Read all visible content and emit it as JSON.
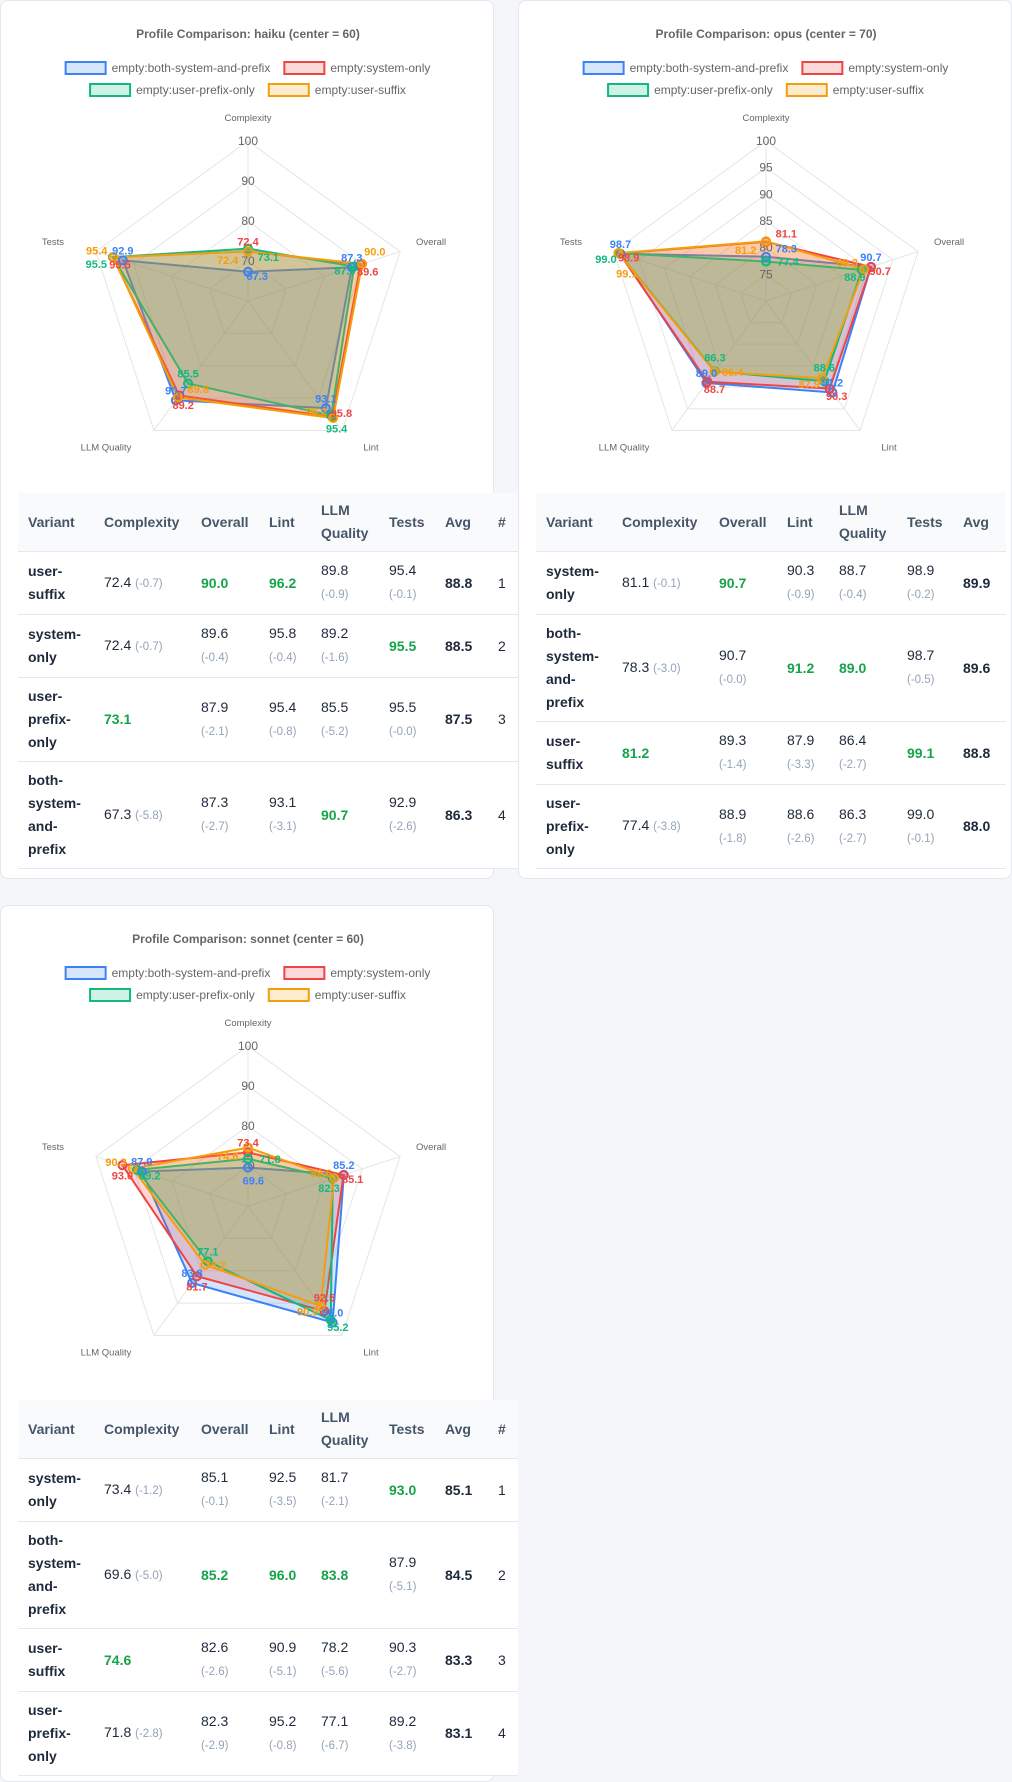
{
  "colors": {
    "blue": "#3b82f6",
    "red": "#ef4444",
    "green": "#10b981",
    "orange": "#f59e0b",
    "best": "#16a34a"
  },
  "table_headers": [
    "Variant",
    "Complexity",
    "Overall",
    "Lint",
    "LLM Quality",
    "Tests",
    "Avg",
    "#"
  ],
  "chart_data": [
    {
      "type": "radar",
      "title": "Profile Comparison: haiku  (center = 60)",
      "axes": [
        "Complexity",
        "Overall",
        "Lint",
        "LLM Quality",
        "Tests"
      ],
      "range": [
        60,
        100
      ],
      "ticks": [
        "70",
        "80",
        "90",
        "100"
      ],
      "legend_position": "top",
      "series": [
        {
          "name": "empty:both-system-and-prefix",
          "color": "#3b82f6",
          "values": [
            67.3,
            87.3,
            93.1,
            90.7,
            92.9
          ]
        },
        {
          "name": "empty:system-only",
          "color": "#ef4444",
          "values": [
            72.4,
            89.6,
            95.8,
            89.2,
            95.5
          ]
        },
        {
          "name": "empty:user-prefix-only",
          "color": "#10b981",
          "values": [
            73.1,
            87.9,
            95.4,
            85.5,
            95.5
          ]
        },
        {
          "name": "empty:user-suffix",
          "color": "#f59e0b",
          "values": [
            72.4,
            90.0,
            96.2,
            89.8,
            95.4
          ]
        }
      ],
      "table": [
        {
          "variant": "user-suffix",
          "cells": [
            {
              "v": "72.4",
              "d": "(-0.7)"
            },
            {
              "v": "90.0",
              "best": true
            },
            {
              "v": "96.2",
              "best": true
            },
            {
              "v": "89.8",
              "d": "(-0.9)"
            },
            {
              "v": "95.4",
              "d": "(-0.1)"
            }
          ],
          "avg": "88.8",
          "rank": "1"
        },
        {
          "variant": "system-only",
          "cells": [
            {
              "v": "72.4",
              "d": "(-0.7)"
            },
            {
              "v": "89.6",
              "d": "(-0.4)"
            },
            {
              "v": "95.8",
              "d": "(-0.4)"
            },
            {
              "v": "89.2",
              "d": "(-1.6)"
            },
            {
              "v": "95.5",
              "best": true
            }
          ],
          "avg": "88.5",
          "rank": "2"
        },
        {
          "variant": "user-prefix-only",
          "cells": [
            {
              "v": "73.1",
              "best": true
            },
            {
              "v": "87.9",
              "d": "(-2.1)"
            },
            {
              "v": "95.4",
              "d": "(-0.8)"
            },
            {
              "v": "85.5",
              "d": "(-5.2)"
            },
            {
              "v": "95.5",
              "d": "(-0.0)"
            }
          ],
          "avg": "87.5",
          "rank": "3"
        },
        {
          "variant": "both-system-and-prefix",
          "cells": [
            {
              "v": "67.3",
              "d": "(-5.8)"
            },
            {
              "v": "87.3",
              "d": "(-2.7)"
            },
            {
              "v": "93.1",
              "d": "(-3.1)"
            },
            {
              "v": "90.7",
              "best": true
            },
            {
              "v": "92.9",
              "d": "(-2.6)"
            }
          ],
          "avg": "86.3",
          "rank": "4"
        }
      ]
    },
    {
      "type": "radar",
      "title": "Profile Comparison: opus  (center = 70)",
      "axes": [
        "Complexity",
        "Overall",
        "Lint",
        "LLM Quality",
        "Tests"
      ],
      "range": [
        70,
        100
      ],
      "ticks": [
        "75",
        "80",
        "85",
        "90",
        "95",
        "100"
      ],
      "legend_position": "top",
      "series": [
        {
          "name": "empty:both-system-and-prefix",
          "color": "#3b82f6",
          "values": [
            78.3,
            90.7,
            91.2,
            89.0,
            98.7
          ]
        },
        {
          "name": "empty:system-only",
          "color": "#ef4444",
          "values": [
            81.1,
            90.7,
            90.3,
            88.7,
            98.9
          ]
        },
        {
          "name": "empty:user-prefix-only",
          "color": "#10b981",
          "values": [
            77.4,
            88.9,
            88.6,
            86.3,
            99.0
          ]
        },
        {
          "name": "empty:user-suffix",
          "color": "#f59e0b",
          "values": [
            81.2,
            89.3,
            87.9,
            86.4,
            99.1
          ]
        }
      ],
      "table": [
        {
          "variant": "system-only",
          "cells": [
            {
              "v": "81.1",
              "d": "(-0.1)"
            },
            {
              "v": "90.7",
              "best": true
            },
            {
              "v": "90.3",
              "d": "(-0.9)"
            },
            {
              "v": "88.7",
              "d": "(-0.4)"
            },
            {
              "v": "98.9",
              "d": "(-0.2)"
            }
          ],
          "avg": "89.9"
        },
        {
          "variant": "both-system-and-prefix",
          "cells": [
            {
              "v": "78.3",
              "d": "(-3.0)"
            },
            {
              "v": "90.7",
              "d": "(-0.0)"
            },
            {
              "v": "91.2",
              "best": true
            },
            {
              "v": "89.0",
              "best": true
            },
            {
              "v": "98.7",
              "d": "(-0.5)"
            }
          ],
          "avg": "89.6"
        },
        {
          "variant": "user-suffix",
          "cells": [
            {
              "v": "81.2",
              "best": true
            },
            {
              "v": "89.3",
              "d": "(-1.4)"
            },
            {
              "v": "87.9",
              "d": "(-3.3)"
            },
            {
              "v": "86.4",
              "d": "(-2.7)"
            },
            {
              "v": "99.1",
              "best": true
            }
          ],
          "avg": "88.8"
        },
        {
          "variant": "user-prefix-only",
          "cells": [
            {
              "v": "77.4",
              "d": "(-3.8)"
            },
            {
              "v": "88.9",
              "d": "(-1.8)"
            },
            {
              "v": "88.6",
              "d": "(-2.6)"
            },
            {
              "v": "86.3",
              "d": "(-2.7)"
            },
            {
              "v": "99.0",
              "d": "(-0.1)"
            }
          ],
          "avg": "88.0"
        }
      ]
    },
    {
      "type": "radar",
      "title": "Profile Comparison: sonnet  (center = 60)",
      "axes": [
        "Complexity",
        "Overall",
        "Lint",
        "LLM Quality",
        "Tests"
      ],
      "range": [
        60,
        100
      ],
      "ticks": [
        "70",
        "80",
        "90",
        "100"
      ],
      "legend_position": "top",
      "series": [
        {
          "name": "empty:both-system-and-prefix",
          "color": "#3b82f6",
          "values": [
            69.6,
            85.2,
            96.0,
            83.8,
            87.9
          ]
        },
        {
          "name": "empty:system-only",
          "color": "#ef4444",
          "values": [
            73.4,
            85.1,
            92.5,
            81.7,
            93.0
          ]
        },
        {
          "name": "empty:user-prefix-only",
          "color": "#10b981",
          "values": [
            71.8,
            82.3,
            95.2,
            77.1,
            89.2
          ]
        },
        {
          "name": "empty:user-suffix",
          "color": "#f59e0b",
          "values": [
            74.6,
            82.6,
            90.9,
            78.2,
            90.3
          ]
        }
      ],
      "table": [
        {
          "variant": "system-only",
          "cells": [
            {
              "v": "73.4",
              "d": "(-1.2)"
            },
            {
              "v": "85.1",
              "d": "(-0.1)"
            },
            {
              "v": "92.5",
              "d": "(-3.5)"
            },
            {
              "v": "81.7",
              "d": "(-2.1)"
            },
            {
              "v": "93.0",
              "best": true
            }
          ],
          "avg": "85.1",
          "rank": "1"
        },
        {
          "variant": "both-system-and-prefix",
          "cells": [
            {
              "v": "69.6",
              "d": "(-5.0)"
            },
            {
              "v": "85.2",
              "best": true
            },
            {
              "v": "96.0",
              "best": true
            },
            {
              "v": "83.8",
              "best": true
            },
            {
              "v": "87.9",
              "d": "(-5.1)"
            }
          ],
          "avg": "84.5",
          "rank": "2"
        },
        {
          "variant": "user-suffix",
          "cells": [
            {
              "v": "74.6",
              "best": true
            },
            {
              "v": "82.6",
              "d": "(-2.6)"
            },
            {
              "v": "90.9",
              "d": "(-5.1)"
            },
            {
              "v": "78.2",
              "d": "(-5.6)"
            },
            {
              "v": "90.3",
              "d": "(-2.7)"
            }
          ],
          "avg": "83.3",
          "rank": "3"
        },
        {
          "variant": "user-prefix-only",
          "cells": [
            {
              "v": "71.8",
              "d": "(-2.8)"
            },
            {
              "v": "82.3",
              "d": "(-2.9)"
            },
            {
              "v": "95.2",
              "d": "(-0.8)"
            },
            {
              "v": "77.1",
              "d": "(-6.7)"
            },
            {
              "v": "89.2",
              "d": "(-3.8)"
            }
          ],
          "avg": "83.1",
          "rank": "4"
        }
      ]
    }
  ]
}
